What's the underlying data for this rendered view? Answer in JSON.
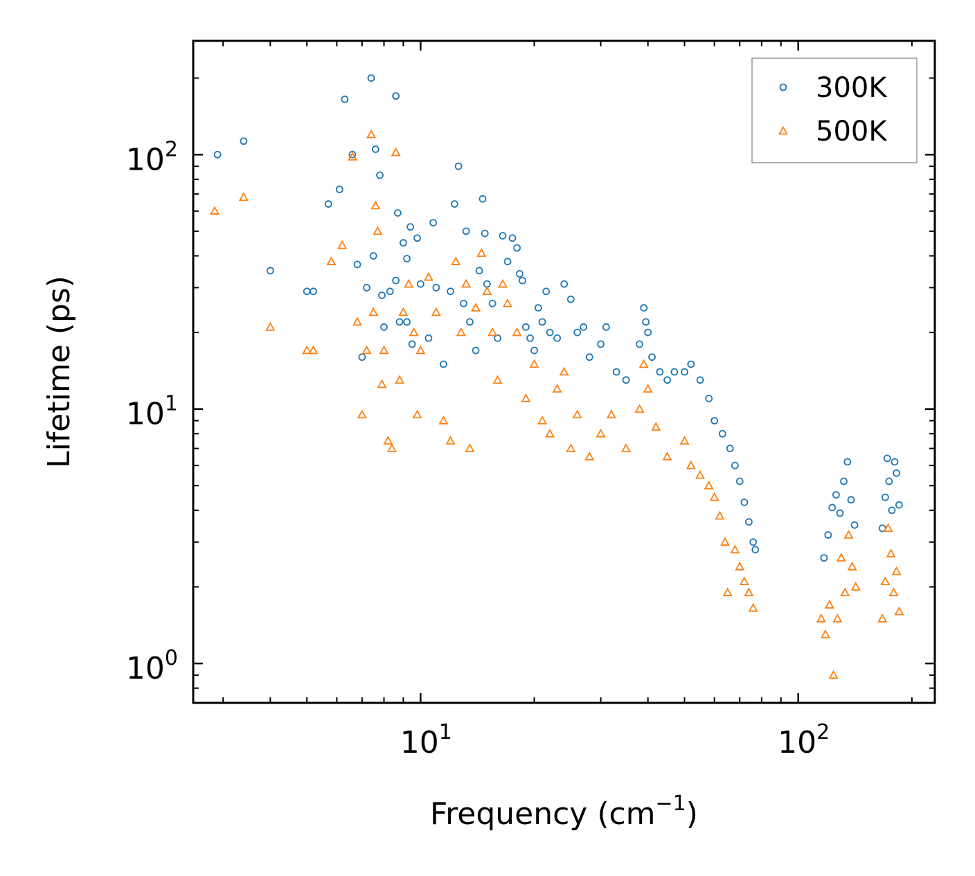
{
  "chart_data": {
    "type": "scatter",
    "title": "",
    "xlabel": {
      "text": "Frequency (cm",
      "sup": "−1",
      "suffix": ")"
    },
    "ylabel": "Lifetime (ps)",
    "xscale": "log",
    "yscale": "log",
    "xlim": [
      2.5,
      230
    ],
    "ylim": [
      0.7,
      280
    ],
    "xticks": [
      {
        "value": 10,
        "base": "10",
        "exp": "1"
      },
      {
        "value": 100,
        "base": "10",
        "exp": "2"
      }
    ],
    "yticks": [
      {
        "value": 1,
        "base": "10",
        "exp": "0"
      },
      {
        "value": 10,
        "base": "10",
        "exp": "1"
      },
      {
        "value": 100,
        "base": "10",
        "exp": "2"
      }
    ],
    "legend": {
      "position": "top-right",
      "entries": [
        "300K",
        "500K"
      ]
    },
    "series": [
      {
        "name": "300K",
        "marker": "circle",
        "color": "#1f77b4",
        "points": [
          [
            2.9,
            100
          ],
          [
            3.4,
            113
          ],
          [
            4.0,
            35
          ],
          [
            5.0,
            29
          ],
          [
            5.2,
            29
          ],
          [
            5.7,
            64
          ],
          [
            6.1,
            73
          ],
          [
            6.6,
            100
          ],
          [
            6.3,
            165
          ],
          [
            6.8,
            37
          ],
          [
            7.0,
            16
          ],
          [
            7.2,
            30
          ],
          [
            7.4,
            200
          ],
          [
            7.5,
            40
          ],
          [
            7.6,
            105
          ],
          [
            7.8,
            83
          ],
          [
            7.9,
            28
          ],
          [
            8.0,
            21
          ],
          [
            8.3,
            29
          ],
          [
            8.6,
            32
          ],
          [
            8.6,
            170
          ],
          [
            8.7,
            59
          ],
          [
            8.8,
            22
          ],
          [
            9.0,
            45
          ],
          [
            9.2,
            39
          ],
          [
            9.2,
            22
          ],
          [
            9.4,
            52
          ],
          [
            9.5,
            18
          ],
          [
            9.8,
            47
          ],
          [
            10.0,
            31
          ],
          [
            10.5,
            19
          ],
          [
            10.8,
            54
          ],
          [
            11.0,
            30
          ],
          [
            11.5,
            15
          ],
          [
            12.0,
            29
          ],
          [
            12.3,
            64
          ],
          [
            12.6,
            90
          ],
          [
            13.0,
            26
          ],
          [
            13.2,
            50
          ],
          [
            13.5,
            22
          ],
          [
            14.0,
            17
          ],
          [
            14.3,
            35
          ],
          [
            14.6,
            67
          ],
          [
            14.8,
            49
          ],
          [
            15.0,
            31
          ],
          [
            15.5,
            26
          ],
          [
            16.0,
            19
          ],
          [
            16.5,
            48
          ],
          [
            17.0,
            38
          ],
          [
            17.5,
            47
          ],
          [
            18.0,
            43
          ],
          [
            18.3,
            34
          ],
          [
            18.6,
            32
          ],
          [
            19.0,
            21
          ],
          [
            19.5,
            19
          ],
          [
            20.0,
            17
          ],
          [
            20.5,
            25
          ],
          [
            21.0,
            22
          ],
          [
            21.5,
            29
          ],
          [
            22.0,
            20
          ],
          [
            23.0,
            19
          ],
          [
            24.0,
            31
          ],
          [
            25.0,
            27
          ],
          [
            26.0,
            20
          ],
          [
            27.0,
            21
          ],
          [
            28.0,
            16
          ],
          [
            30.0,
            18
          ],
          [
            31.0,
            21
          ],
          [
            33.0,
            14
          ],
          [
            35.0,
            13
          ],
          [
            38.0,
            18
          ],
          [
            39.0,
            25
          ],
          [
            39.5,
            22
          ],
          [
            40.0,
            20
          ],
          [
            41.0,
            16
          ],
          [
            43.0,
            14
          ],
          [
            45.0,
            13
          ],
          [
            47.0,
            14
          ],
          [
            50.0,
            14
          ],
          [
            52.0,
            15
          ],
          [
            55.0,
            13
          ],
          [
            58.0,
            11
          ],
          [
            60.0,
            9
          ],
          [
            63.0,
            8
          ],
          [
            66.0,
            7
          ],
          [
            68.0,
            6
          ],
          [
            70.0,
            5.2
          ],
          [
            72.0,
            4.3
          ],
          [
            74.0,
            3.6
          ],
          [
            76.0,
            3.0
          ],
          [
            77.0,
            2.8
          ],
          [
            117,
            2.6
          ],
          [
            120,
            3.2
          ],
          [
            123,
            4.1
          ],
          [
            126,
            4.6
          ],
          [
            129,
            3.9
          ],
          [
            132,
            5.2
          ],
          [
            135,
            6.2
          ],
          [
            138,
            4.4
          ],
          [
            141,
            3.5
          ],
          [
            167,
            3.4
          ],
          [
            170,
            4.5
          ],
          [
            172,
            6.4
          ],
          [
            174,
            5.2
          ],
          [
            177,
            4.0
          ],
          [
            180,
            6.2
          ],
          [
            182,
            5.6
          ],
          [
            185,
            4.2
          ]
        ]
      },
      {
        "name": "500K",
        "marker": "triangle",
        "color": "#ff7f0e",
        "points": [
          [
            2.85,
            60
          ],
          [
            3.4,
            68
          ],
          [
            4.0,
            21
          ],
          [
            5.0,
            17
          ],
          [
            5.2,
            17
          ],
          [
            5.8,
            38
          ],
          [
            6.2,
            44
          ],
          [
            6.6,
            98
          ],
          [
            6.8,
            22
          ],
          [
            7.0,
            9.5
          ],
          [
            7.2,
            17
          ],
          [
            7.4,
            120
          ],
          [
            7.5,
            24
          ],
          [
            7.6,
            63
          ],
          [
            7.7,
            50
          ],
          [
            7.9,
            12.5
          ],
          [
            8.0,
            17
          ],
          [
            8.2,
            7.5
          ],
          [
            8.4,
            7.0
          ],
          [
            8.6,
            102
          ],
          [
            8.8,
            13
          ],
          [
            9.0,
            24
          ],
          [
            9.3,
            31
          ],
          [
            9.6,
            20
          ],
          [
            9.8,
            9.5
          ],
          [
            10.0,
            17
          ],
          [
            10.5,
            33
          ],
          [
            11.0,
            24
          ],
          [
            11.5,
            9.0
          ],
          [
            12.0,
            7.5
          ],
          [
            12.4,
            38
          ],
          [
            12.8,
            20
          ],
          [
            13.2,
            31
          ],
          [
            13.5,
            7.0
          ],
          [
            14.0,
            25
          ],
          [
            14.5,
            41
          ],
          [
            15.0,
            29
          ],
          [
            15.5,
            20
          ],
          [
            16.0,
            13
          ],
          [
            16.5,
            31
          ],
          [
            17.0,
            26
          ],
          [
            18.0,
            20
          ],
          [
            19.0,
            11
          ],
          [
            20.0,
            15
          ],
          [
            21.0,
            9.0
          ],
          [
            22.0,
            8.0
          ],
          [
            23.0,
            12
          ],
          [
            24.0,
            14
          ],
          [
            25.0,
            7.0
          ],
          [
            26.0,
            9.5
          ],
          [
            28.0,
            6.5
          ],
          [
            30.0,
            8.0
          ],
          [
            32.0,
            9.5
          ],
          [
            35.0,
            7.0
          ],
          [
            38.0,
            10
          ],
          [
            39.0,
            15
          ],
          [
            40.0,
            12
          ],
          [
            42.0,
            8.5
          ],
          [
            45.0,
            6.5
          ],
          [
            50.0,
            7.5
          ],
          [
            52.0,
            6.0
          ],
          [
            55.0,
            5.5
          ],
          [
            58.0,
            5.0
          ],
          [
            60.0,
            4.5
          ],
          [
            62.0,
            3.8
          ],
          [
            64.0,
            3.0
          ],
          [
            65.0,
            1.9
          ],
          [
            68.0,
            2.8
          ],
          [
            70.0,
            2.4
          ],
          [
            72.0,
            2.1
          ],
          [
            74.0,
            1.9
          ],
          [
            76.0,
            1.65
          ],
          [
            115,
            1.5
          ],
          [
            118,
            1.3
          ],
          [
            121,
            1.7
          ],
          [
            124,
            0.9
          ],
          [
            127,
            1.5
          ],
          [
            130,
            2.6
          ],
          [
            133,
            1.9
          ],
          [
            136,
            3.2
          ],
          [
            139,
            2.4
          ],
          [
            142,
            2.0
          ],
          [
            167,
            1.5
          ],
          [
            170,
            2.1
          ],
          [
            173,
            3.4
          ],
          [
            176,
            2.7
          ],
          [
            179,
            1.9
          ],
          [
            182,
            2.3
          ],
          [
            185,
            1.6
          ]
        ]
      }
    ]
  }
}
